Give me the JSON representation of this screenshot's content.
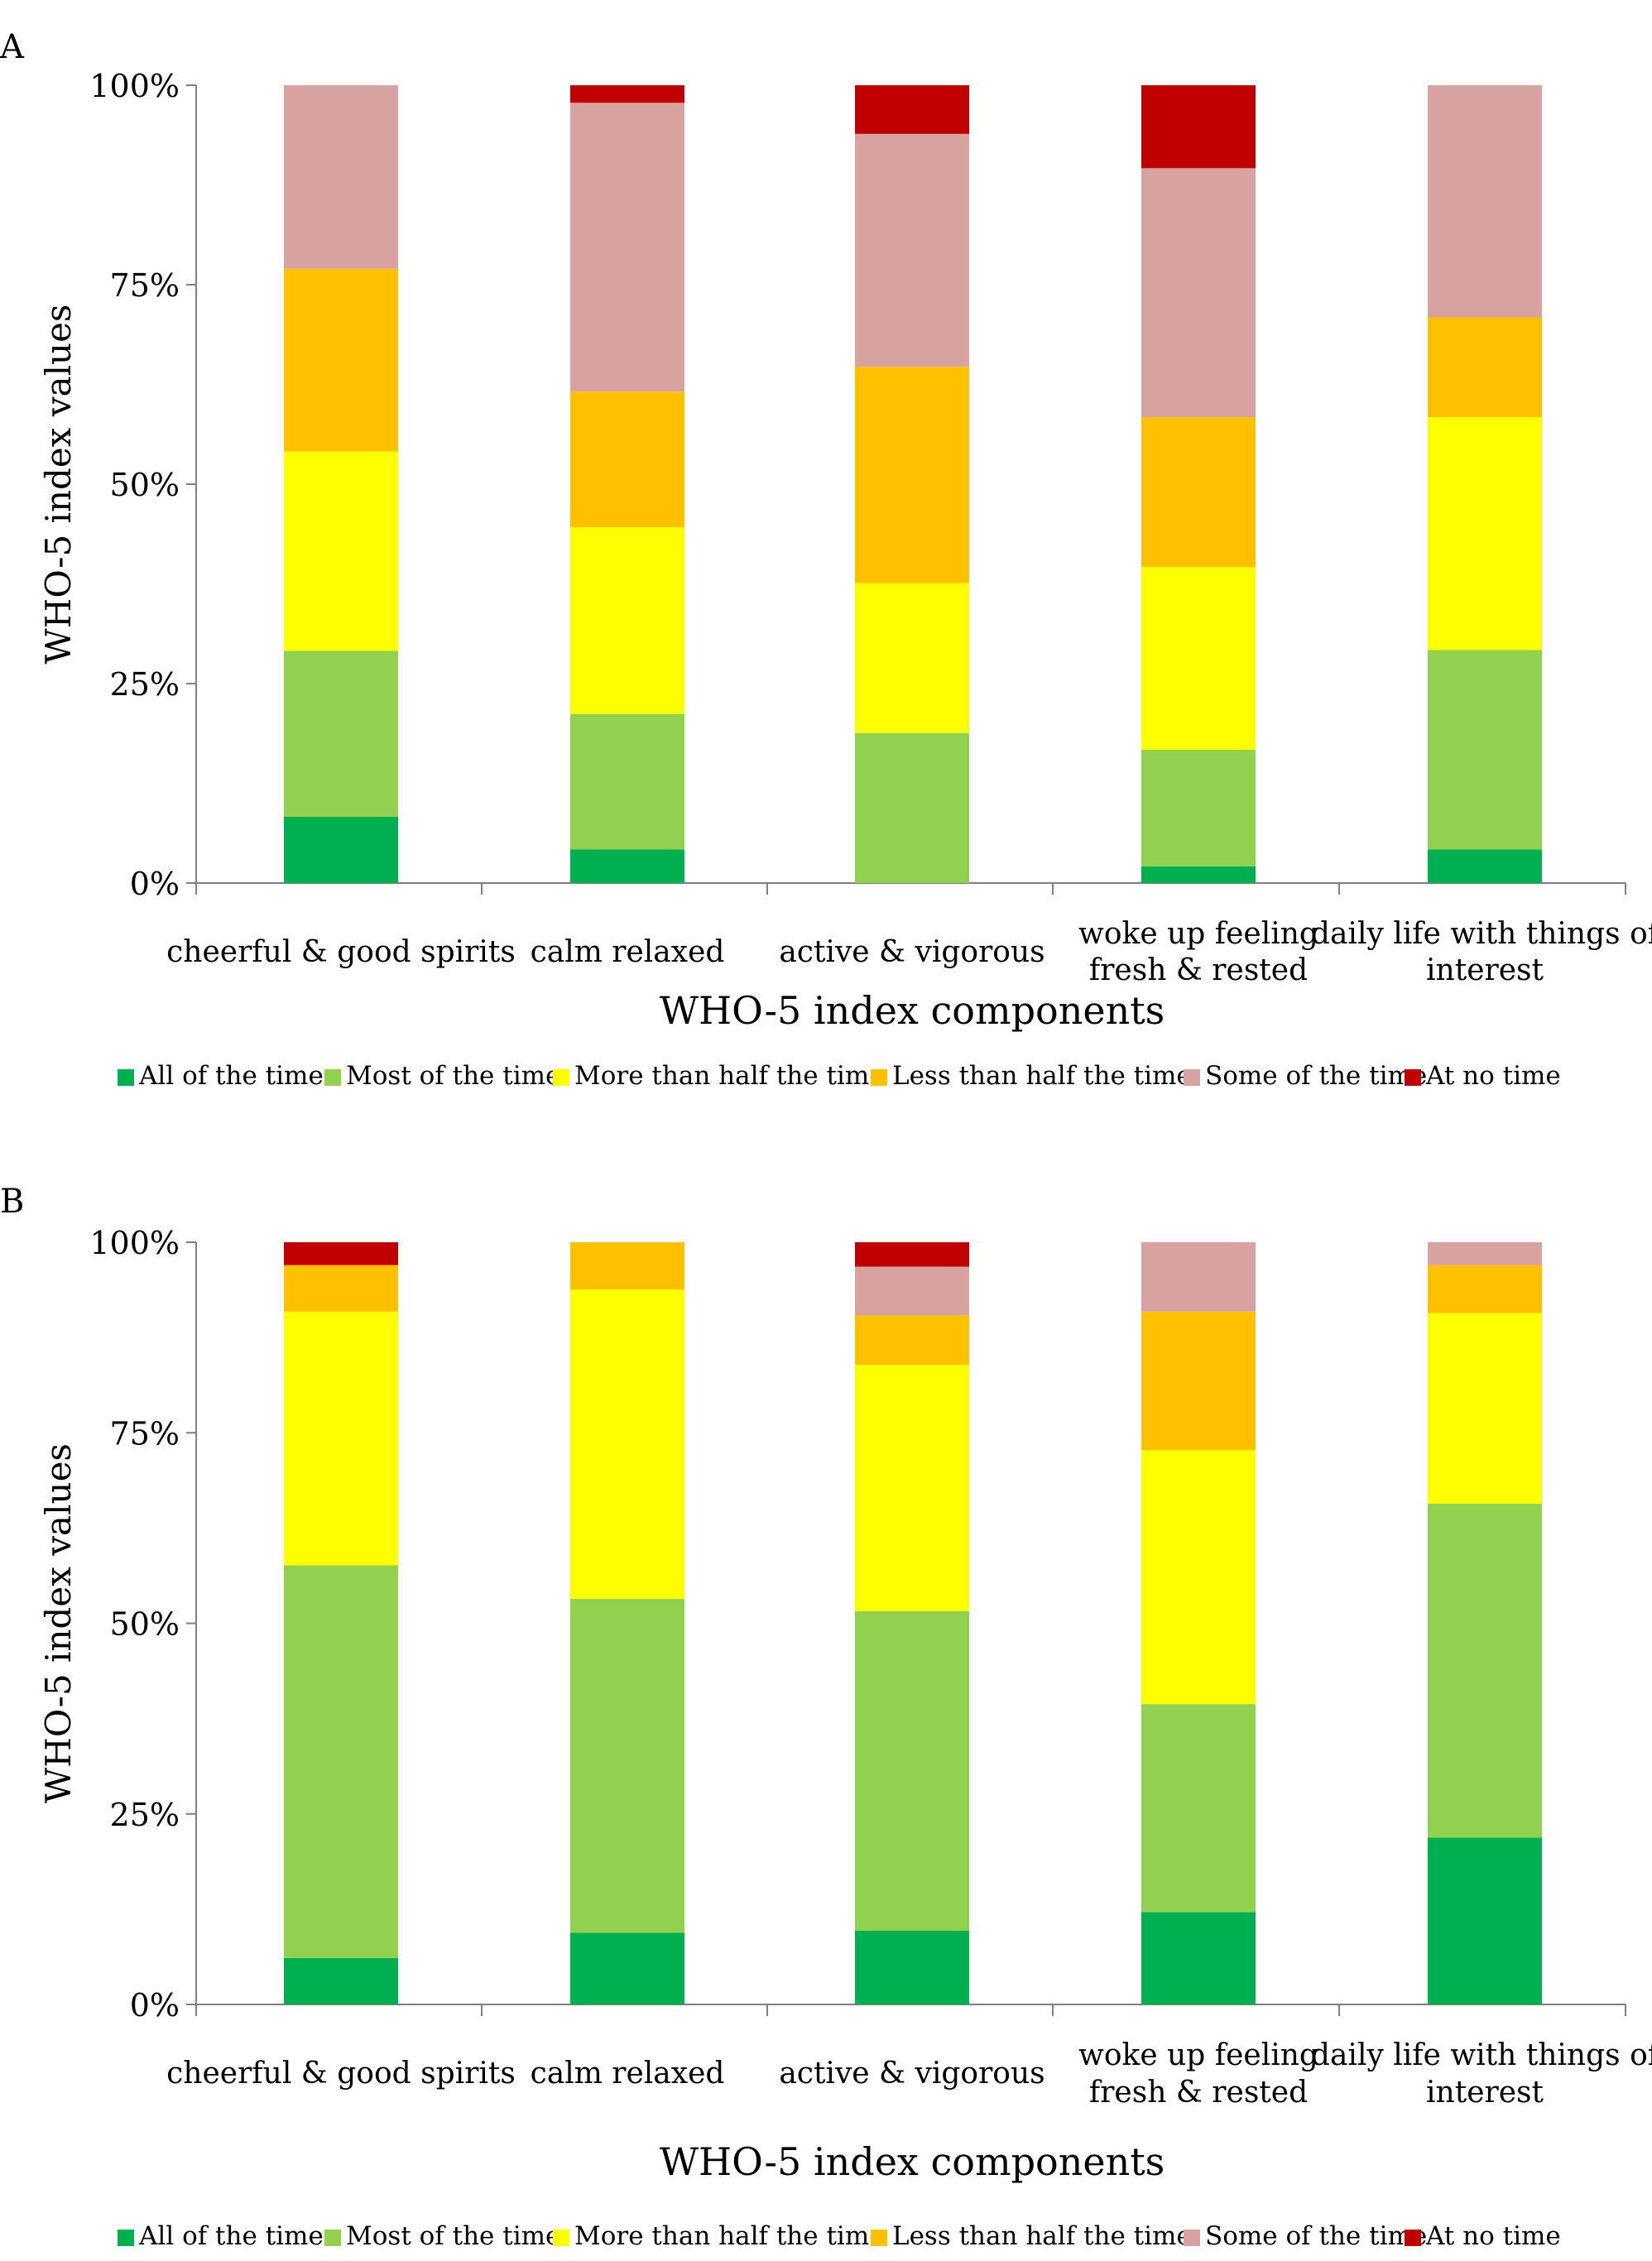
{
  "chart_data": [
    {
      "type": "bar",
      "stacked": true,
      "panel_label": "A",
      "title": "",
      "xlabel": "WHO-5 index components",
      "ylabel": "WHO-5 index values",
      "ylim": [
        0,
        100
      ],
      "y_ticks": [
        "0%",
        "25%",
        "50%",
        "75%",
        "100%"
      ],
      "categories": [
        [
          "cheerful & good spirits"
        ],
        [
          "calm relaxed"
        ],
        [
          "active & vigorous"
        ],
        [
          "woke up feeling",
          "fresh & rested"
        ],
        [
          "daily life with things of",
          "interest"
        ]
      ],
      "legend_position": "bottom",
      "series": [
        {
          "name": "All of the time",
          "color": "#00b050",
          "values": [
            8.3,
            4.2,
            0,
            2.1,
            4.2
          ]
        },
        {
          "name": "Most of the time",
          "color": "#92d050",
          "values": [
            20.8,
            17.0,
            18.8,
            14.6,
            25.0
          ]
        },
        {
          "name": "More than half the time",
          "color": "#ffff00",
          "values": [
            25.0,
            23.4,
            18.8,
            22.9,
            29.2
          ]
        },
        {
          "name": "Less than half the time",
          "color": "#ffc000",
          "values": [
            22.9,
            17.0,
            27.1,
            18.8,
            12.5
          ]
        },
        {
          "name": "Some of the time",
          "color": "#d8a2a0",
          "values": [
            23.0,
            36.2,
            29.2,
            31.2,
            29.1
          ]
        },
        {
          "name": "At no time",
          "color": "#c00000",
          "values": [
            0,
            2.2,
            6.1,
            10.4,
            0
          ]
        }
      ]
    },
    {
      "type": "bar",
      "stacked": true,
      "panel_label": "B",
      "title": "",
      "xlabel": "WHO-5 index components",
      "ylabel": "WHO-5 index values",
      "ylim": [
        0,
        100
      ],
      "y_ticks": [
        "0%",
        "25%",
        "50%",
        "75%",
        "100%"
      ],
      "categories": [
        [
          "cheerful & good spirits"
        ],
        [
          "calm relaxed"
        ],
        [
          "active & vigorous"
        ],
        [
          "woke up feeling",
          "fresh & rested"
        ],
        [
          "daily life with things of",
          "interest"
        ]
      ],
      "legend_position": "bottom",
      "series": [
        {
          "name": "All of the time",
          "color": "#00b050",
          "values": [
            6.1,
            9.4,
            9.7,
            12.1,
            21.9
          ]
        },
        {
          "name": "Most of the time",
          "color": "#92d050",
          "values": [
            51.5,
            43.8,
            41.9,
            27.3,
            43.8
          ]
        },
        {
          "name": "More than half the time",
          "color": "#ffff00",
          "values": [
            33.3,
            40.6,
            32.3,
            33.3,
            25.0
          ]
        },
        {
          "name": "Less than half the time",
          "color": "#ffc000",
          "values": [
            6.1,
            6.2,
            6.5,
            18.2,
            6.3
          ]
        },
        {
          "name": "Some of the time",
          "color": "#d8a2a0",
          "values": [
            0,
            0,
            6.4,
            9.1,
            3.0
          ]
        },
        {
          "name": "At no time",
          "color": "#c00000",
          "values": [
            3.0,
            0,
            3.2,
            0,
            0
          ]
        }
      ]
    }
  ]
}
